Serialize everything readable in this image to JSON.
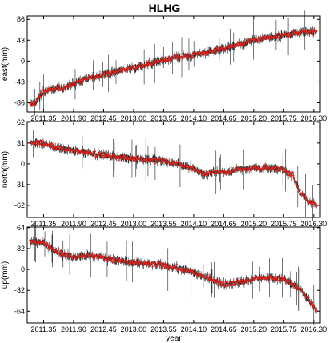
{
  "title": "HLHG",
  "chart_data": [
    {
      "type": "scatter",
      "ylabel": "east(mm)",
      "xlabel": "",
      "xlim": [
        2011.05,
        2016.42
      ],
      "ylim": [
        -105,
        93
      ],
      "yticks": [
        86,
        43,
        0,
        -43,
        -86
      ],
      "xticks": [
        "2011.35",
        "2011.90",
        "2012.45",
        "2013.00",
        "2013.55",
        "2014.10",
        "2014.65",
        "2015.20",
        "2015.75",
        "2016.30"
      ],
      "series": [
        {
          "x": [
            2011.1,
            2011.2,
            2011.35,
            2011.55,
            2011.75,
            2011.9,
            2012.1,
            2012.3,
            2012.45,
            2012.7,
            2013.0,
            2013.3,
            2013.55,
            2013.8,
            2014.1,
            2014.4,
            2014.65,
            2014.9,
            2015.2,
            2015.5,
            2015.75,
            2016.0,
            2016.2,
            2016.35
          ],
          "values": [
            -90,
            -85,
            -63,
            -58,
            -54,
            -46,
            -38,
            -33,
            -27,
            -22,
            -13,
            -5,
            2,
            8,
            12,
            20,
            26,
            33,
            42,
            48,
            53,
            58,
            62,
            60
          ]
        }
      ]
    },
    {
      "type": "scatter",
      "ylabel": "north(mm)",
      "xlabel": "",
      "xlim": [
        2011.05,
        2016.42
      ],
      "ylim": [
        -80,
        63
      ],
      "yticks": [
        62,
        31,
        0,
        -31,
        -62
      ],
      "xticks": [
        "2011.35",
        "2011.90",
        "2012.45",
        "2013.00",
        "2013.55",
        "2014.10",
        "2014.65",
        "2015.20",
        "2015.75",
        "2016.30"
      ],
      "series": [
        {
          "x": [
            2011.1,
            2011.35,
            2011.55,
            2011.75,
            2011.9,
            2012.1,
            2012.45,
            2012.7,
            2013.0,
            2013.3,
            2013.55,
            2013.8,
            2014.1,
            2014.3,
            2014.5,
            2014.65,
            2014.9,
            2015.2,
            2015.5,
            2015.75,
            2015.9,
            2016.05,
            2016.2,
            2016.35
          ],
          "values": [
            32,
            30,
            25,
            22,
            19,
            18,
            13,
            10,
            8,
            6,
            4,
            0,
            -8,
            -15,
            -12,
            -14,
            -8,
            -6,
            -7,
            -9,
            -15,
            -42,
            -57,
            -60
          ]
        }
      ]
    },
    {
      "type": "scatter",
      "ylabel": "up(mm)",
      "xlabel": "year",
      "xlim": [
        2011.05,
        2016.42
      ],
      "ylim": [
        -82,
        65
      ],
      "yticks": [
        64,
        32,
        0,
        -32,
        -64
      ],
      "xticks": [
        "2011.35",
        "2011.90",
        "2012.45",
        "2013.00",
        "2013.55",
        "2014.10",
        "2014.65",
        "2015.20",
        "2015.75",
        "2016.30"
      ],
      "series": [
        {
          "x": [
            2011.1,
            2011.35,
            2011.55,
            2011.75,
            2011.9,
            2012.1,
            2012.45,
            2012.7,
            2013.0,
            2013.3,
            2013.55,
            2013.8,
            2014.1,
            2014.4,
            2014.65,
            2014.9,
            2015.2,
            2015.5,
            2015.75,
            2015.95,
            2016.1,
            2016.25,
            2016.35
          ],
          "values": [
            44,
            40,
            30,
            22,
            20,
            22,
            18,
            14,
            10,
            8,
            6,
            2,
            -5,
            -15,
            -22,
            -20,
            -15,
            -12,
            -15,
            -24,
            -35,
            -52,
            -62
          ]
        }
      ]
    }
  ]
}
